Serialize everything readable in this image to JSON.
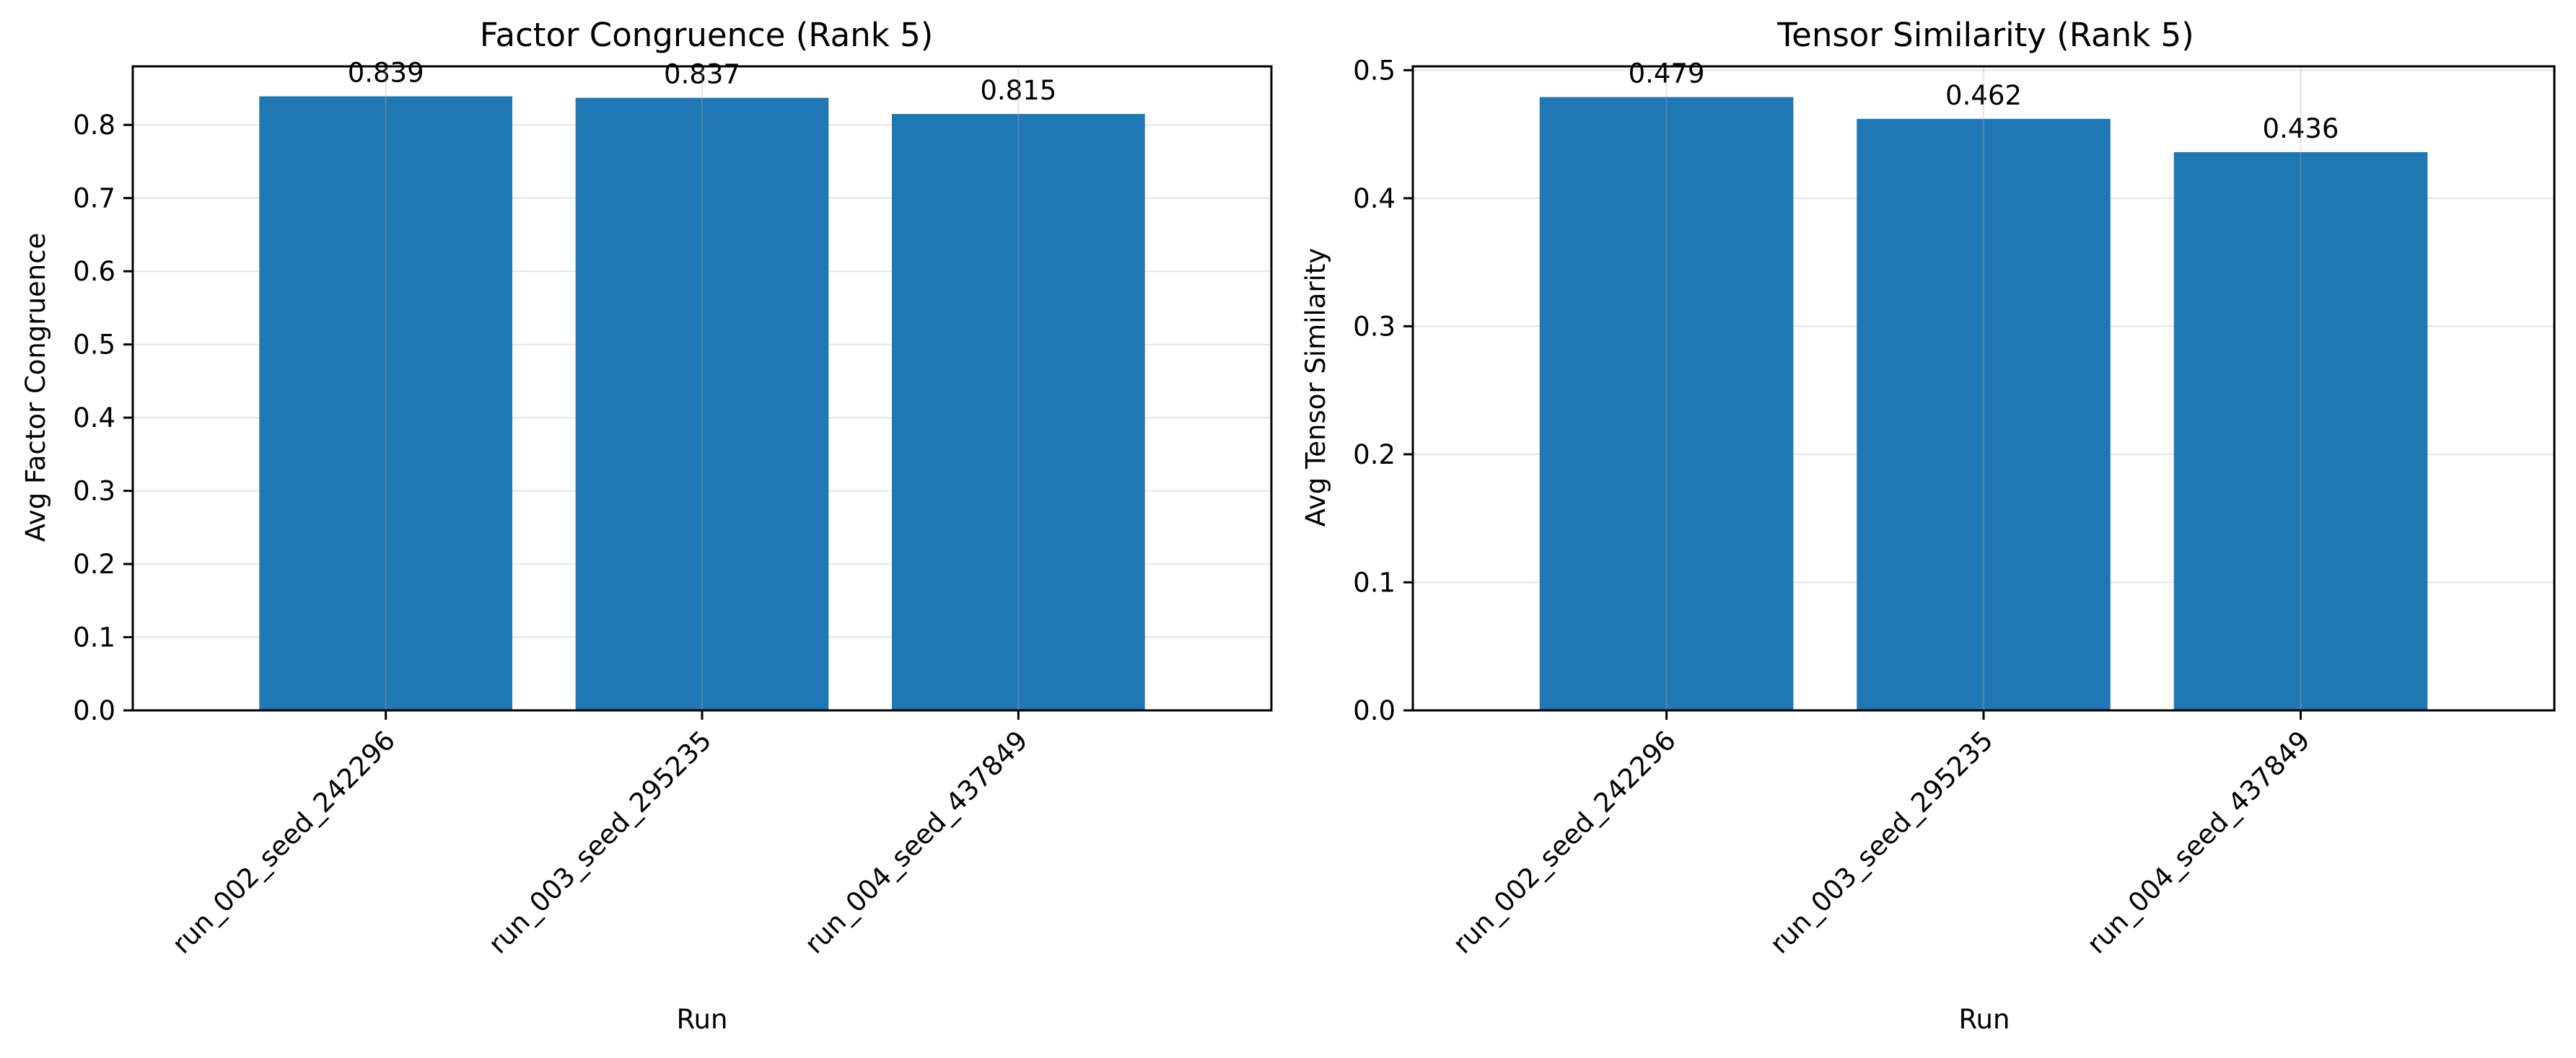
{
  "chart_data": [
    {
      "type": "bar",
      "title": "Factor Congruence (Rank 5)",
      "xlabel": "Run",
      "ylabel": "Avg Factor Congruence",
      "categories": [
        "run_002_seed_242296",
        "run_003_seed_295235",
        "run_004_seed_437849"
      ],
      "values": [
        0.839,
        0.837,
        0.815
      ],
      "data_labels": [
        "0.839",
        "0.837",
        "0.815"
      ],
      "ylim": [
        0,
        0.88
      ],
      "yticks": [
        0.0,
        0.1,
        0.2,
        0.3,
        0.4,
        0.5,
        0.6,
        0.7,
        0.8
      ],
      "ytick_labels": [
        "0.0",
        "0.1",
        "0.2",
        "0.3",
        "0.4",
        "0.5",
        "0.6",
        "0.7",
        "0.8"
      ],
      "grid": true,
      "bar_color": "#1f77b4"
    },
    {
      "type": "bar",
      "title": "Tensor Similarity (Rank 5)",
      "xlabel": "Run",
      "ylabel": "Avg Tensor Similarity",
      "categories": [
        "run_002_seed_242296",
        "run_003_seed_295235",
        "run_004_seed_437849"
      ],
      "values": [
        0.479,
        0.462,
        0.436
      ],
      "data_labels": [
        "0.479",
        "0.462",
        "0.436"
      ],
      "ylim": [
        0,
        0.503
      ],
      "yticks": [
        0.0,
        0.1,
        0.2,
        0.3,
        0.4,
        0.5
      ],
      "ytick_labels": [
        "0.0",
        "0.1",
        "0.2",
        "0.3",
        "0.4",
        "0.5"
      ],
      "grid": true,
      "bar_color": "#1f77b4"
    }
  ]
}
